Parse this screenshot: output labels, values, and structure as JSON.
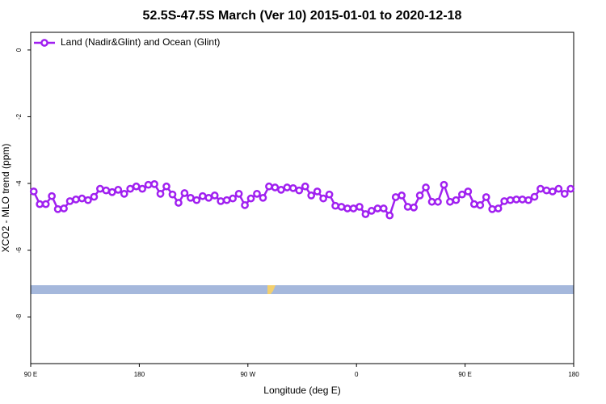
{
  "chart_data": {
    "type": "line",
    "title": "52.5S-47.5S March (Ver 10)   2015-01-01 to 2020-12-18",
    "x_label": "Longitude (deg E)",
    "y_label": "XCO2 - MLO trend (ppm)",
    "xlim": [
      90,
      540
    ],
    "xticks": [
      {
        "value": 90,
        "label": "90 E"
      },
      180,
      {
        "value": 270,
        "label": "90 W"
      },
      {
        "value": 360,
        "label": "0"
      },
      {
        "value": 450,
        "label": "90 E"
      },
      {
        "value": 540,
        "label": "180"
      }
    ],
    "ylim": [
      -9.4,
      0.53
    ],
    "yticks": [
      0,
      -2,
      -4,
      -6,
      -8
    ],
    "grid": false,
    "legend": "top-left",
    "x": [
      92.5,
      97.5,
      102.5,
      107.5,
      112.5,
      117.5,
      122.5,
      127.5,
      132.5,
      137.5,
      142.5,
      147.5,
      152.5,
      157.5,
      162.5,
      167.5,
      172.5,
      177.5,
      182.5,
      187.5,
      192.5,
      197.5,
      202.5,
      207.5,
      212.5,
      217.5,
      222.5,
      227.5,
      232.5,
      237.5,
      242.5,
      247.5,
      252.5,
      257.5,
      262.5,
      267.5,
      272.5,
      277.5,
      282.5,
      287.5,
      292.5,
      297.5,
      302.5,
      307.5,
      312.5,
      317.5,
      322.5,
      327.5,
      332.5,
      337.5,
      342.5,
      347.5,
      352.5,
      357.5,
      362.5,
      367.5,
      372.5,
      377.5,
      382.5,
      387.5,
      392.5,
      397.5,
      402.5,
      407.5,
      412.5,
      417.5,
      422.5,
      427.5,
      432.5,
      437.5,
      442.5,
      447.5,
      452.5,
      457.5,
      462.5,
      467.5,
      472.5,
      477.5,
      482.5,
      487.5,
      492.5,
      497.5,
      502.5,
      507.5,
      512.5,
      517.5,
      522.5,
      527.5,
      532.5,
      537.5
    ],
    "series": [
      {
        "name": "Land (Nadir&Glint) and Ocean (Glint)",
        "color": "#a020f0",
        "values": [
          -4.24,
          -4.62,
          -4.62,
          -4.38,
          -4.77,
          -4.75,
          -4.53,
          -4.48,
          -4.45,
          -4.5,
          -4.4,
          -4.16,
          -4.21,
          -4.26,
          -4.19,
          -4.31,
          -4.16,
          -4.09,
          -4.16,
          -4.04,
          -4.02,
          -4.31,
          -4.09,
          -4.33,
          -4.58,
          -4.29,
          -4.43,
          -4.5,
          -4.38,
          -4.43,
          -4.36,
          -4.53,
          -4.5,
          -4.45,
          -4.31,
          -4.65,
          -4.45,
          -4.31,
          -4.43,
          -4.09,
          -4.12,
          -4.19,
          -4.12,
          -4.14,
          -4.21,
          -4.09,
          -4.36,
          -4.24,
          -4.45,
          -4.33,
          -4.67,
          -4.7,
          -4.75,
          -4.75,
          -4.7,
          -4.92,
          -4.82,
          -4.75,
          -4.75,
          -4.96,
          -4.41,
          -4.36,
          -4.7,
          -4.72,
          -4.36,
          -4.12,
          -4.55,
          -4.55,
          -4.04,
          -4.55,
          -4.5,
          -4.33,
          -4.24,
          -4.62,
          -4.65,
          -4.41,
          -4.77,
          -4.75,
          -4.53,
          -4.5,
          -4.48,
          -4.48,
          -4.5,
          -4.4,
          -4.16,
          -4.21,
          -4.24,
          -4.16,
          -4.31,
          -4.16
        ]
      }
    ]
  }
}
